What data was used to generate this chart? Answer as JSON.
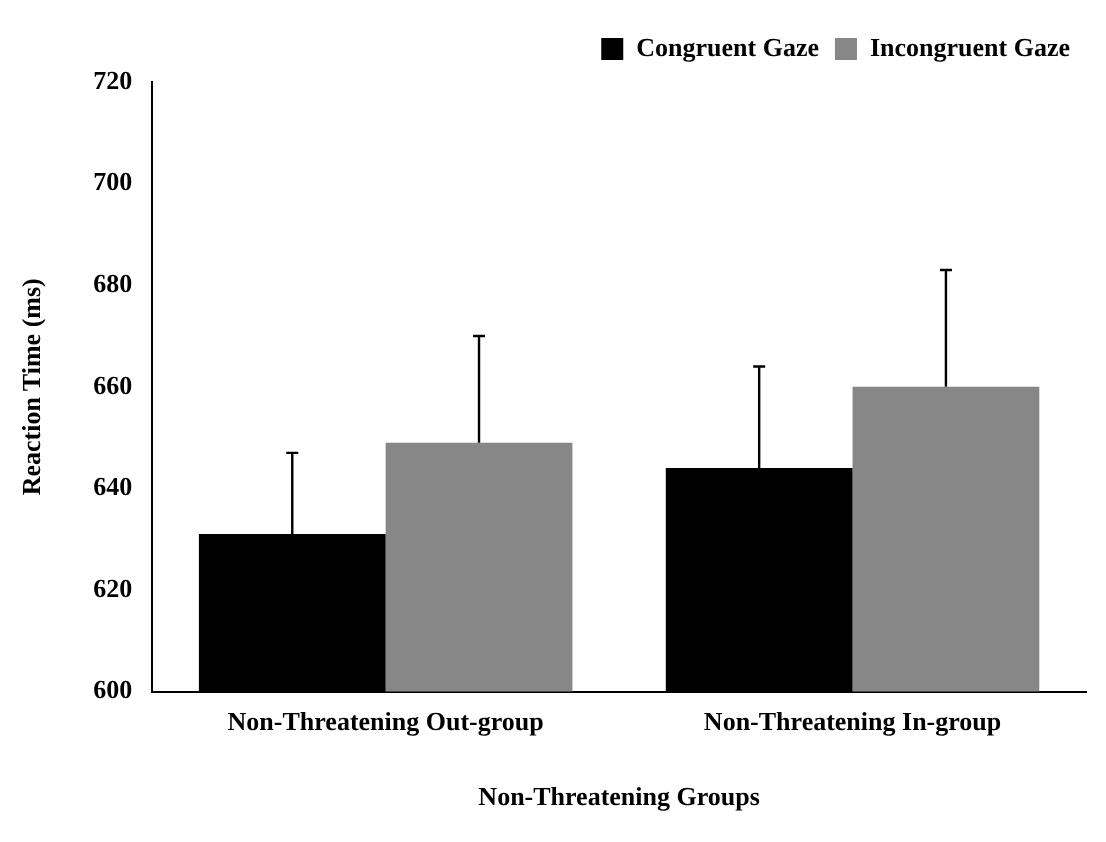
{
  "chart_data": {
    "type": "bar",
    "xlabel": "Non-Threatening Groups",
    "ylabel": "Reaction Time (ms)",
    "categories": [
      "Non-Threatening Out-group",
      "Non-Threatening In-group"
    ],
    "series": [
      {
        "name": "Congruent Gaze",
        "color": "#000000",
        "values": [
          631,
          644
        ],
        "errors": [
          [
            631,
            647
          ],
          [
            644,
            664
          ]
        ]
      },
      {
        "name": "Incongruent Gaze",
        "color": "#878787",
        "values": [
          649,
          660
        ],
        "errors": [
          [
            649,
            670
          ],
          [
            660,
            683
          ]
        ]
      }
    ],
    "ylim": [
      600,
      720
    ],
    "yticks": [
      600,
      620,
      640,
      660,
      680,
      700,
      720
    ],
    "grid": false,
    "legend": "top right"
  }
}
